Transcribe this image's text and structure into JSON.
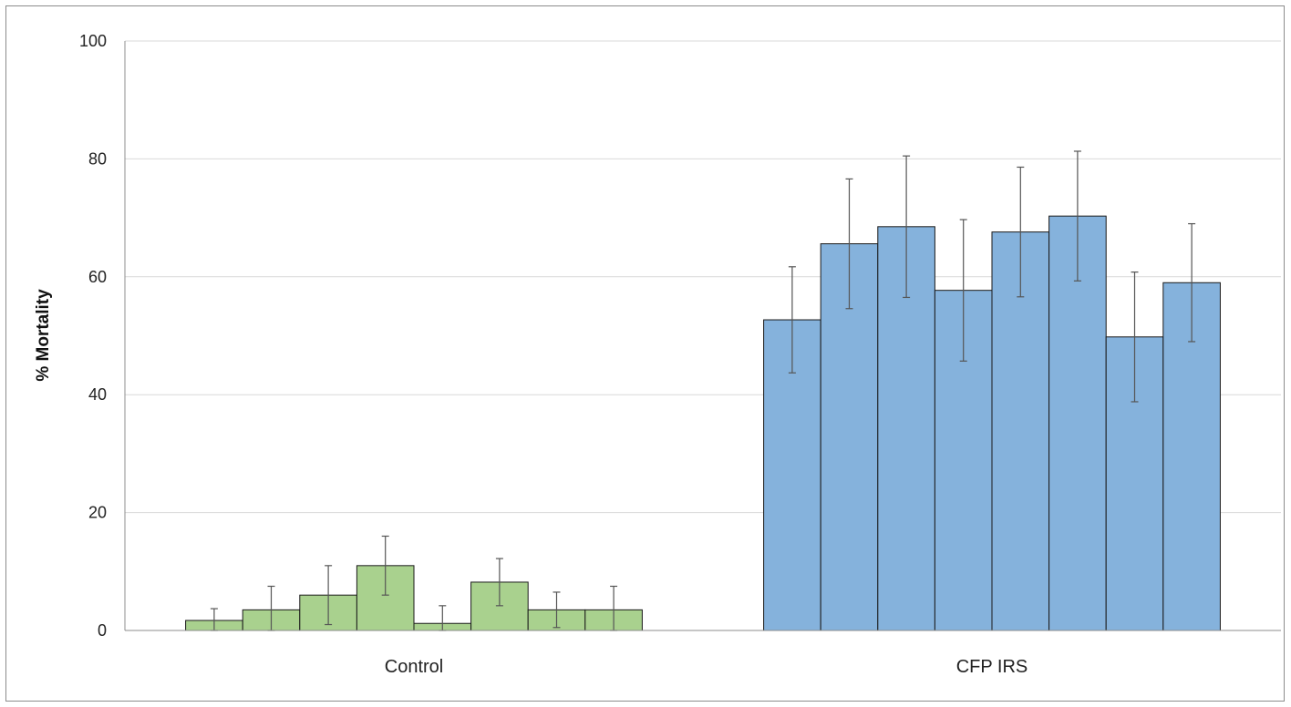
{
  "chart_data": {
    "type": "bar",
    "title": "",
    "xlabel": "",
    "ylabel": "% Mortality",
    "ylim": [
      0,
      100
    ],
    "yticks": [
      0,
      20,
      40,
      60,
      80,
      100
    ],
    "grid": true,
    "legend": "none",
    "groups": [
      {
        "label": "Control",
        "color": "#a9d18e",
        "values": [
          1.7,
          3.5,
          6.0,
          11.0,
          1.2,
          8.2,
          3.5,
          3.5
        ],
        "errors": [
          2.0,
          4.0,
          5.0,
          5.0,
          3.0,
          4.0,
          3.0,
          4.0
        ]
      },
      {
        "label": "CFP IRS",
        "color": "#85b2dc",
        "values": [
          52.7,
          65.6,
          68.5,
          57.7,
          67.6,
          70.3,
          49.8,
          59.0
        ],
        "errors": [
          9.0,
          11.0,
          12.0,
          12.0,
          11.0,
          11.0,
          11.0,
          10.0
        ]
      }
    ]
  }
}
